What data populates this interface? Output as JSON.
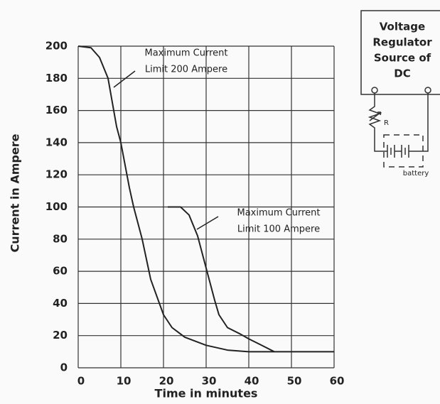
{
  "chart_data": {
    "type": "line",
    "x_label": "Time in minutes",
    "y_label": "Current in Ampere",
    "xlim": [
      0,
      60
    ],
    "xticks": [
      0,
      10,
      20,
      30,
      40,
      50,
      60
    ],
    "ylim": [
      0,
      200
    ],
    "yticks": [
      0,
      20,
      40,
      60,
      80,
      100,
      120,
      140,
      160,
      180,
      200
    ],
    "grid": true,
    "series": [
      {
        "color": "#222222",
        "x": [
          0,
          3,
          5,
          7,
          8,
          9,
          10,
          12,
          13,
          15,
          17,
          20,
          22,
          25,
          30,
          35,
          40,
          50,
          60
        ],
        "values": [
          200,
          199,
          193,
          180,
          165,
          150,
          140,
          112,
          100,
          80,
          55,
          33,
          25,
          19,
          14,
          11,
          10,
          10,
          10
        ]
      },
      {
        "color": "#222222",
        "x": [
          21,
          24,
          26,
          28,
          30,
          32,
          33,
          35,
          38,
          40,
          43,
          46
        ],
        "values": [
          100,
          100,
          95,
          82,
          62,
          42,
          33,
          25,
          21,
          18,
          14,
          10
        ]
      }
    ],
    "annotations": [
      {
        "lines": [
          "Maximum Current",
          "Limit 200 Ampere"
        ]
      },
      {
        "lines": [
          "Maximum Current",
          "Limit 100 Ampere"
        ]
      }
    ]
  },
  "diagram": {
    "box_lines": [
      "Voltage",
      "Regulator",
      "Source of",
      "DC"
    ],
    "resistor": "R",
    "battery": "battery"
  }
}
